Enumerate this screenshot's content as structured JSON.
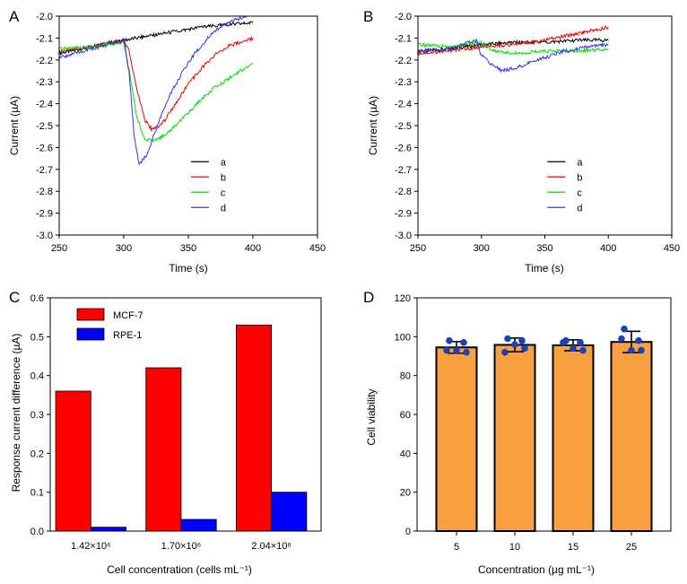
{
  "chart_data": [
    {
      "id": "A",
      "panel_label": "A",
      "type": "line",
      "xlabel": "Time (s)",
      "ylabel": "Current (µA)",
      "xlim": [
        250,
        450
      ],
      "ylim": [
        -3.0,
        -2.0
      ],
      "xticks": [
        250,
        300,
        350,
        400,
        450
      ],
      "xtick_labels": [
        "250",
        "300",
        "350",
        "400",
        "450"
      ],
      "yticks": [
        -3.0,
        -2.9,
        -2.8,
        -2.7,
        -2.6,
        -2.5,
        -2.4,
        -2.3,
        -2.2,
        -2.1,
        -2.0
      ],
      "ytick_labels": [
        "-3.0",
        "-2.9",
        "-2.8",
        "-2.7",
        "-2.6",
        "-2.5",
        "-2.4",
        "-2.3",
        "-2.2",
        "-2.1",
        "-2.0"
      ],
      "series": [
        {
          "name": "a",
          "color": "#000000",
          "x": [
            250,
            275,
            300,
            320,
            340,
            360,
            380,
            400
          ],
          "y": [
            -2.17,
            -2.14,
            -2.11,
            -2.09,
            -2.07,
            -2.05,
            -2.04,
            -2.03
          ]
        },
        {
          "name": "b",
          "color": "#ee0000",
          "x": [
            250,
            275,
            300,
            304,
            310,
            316,
            322,
            330,
            340,
            350,
            360,
            370,
            380,
            390,
            400
          ],
          "y": [
            -2.16,
            -2.14,
            -2.11,
            -2.16,
            -2.33,
            -2.47,
            -2.52,
            -2.49,
            -2.4,
            -2.31,
            -2.24,
            -2.18,
            -2.14,
            -2.12,
            -2.1
          ]
        },
        {
          "name": "c",
          "color": "#00dd00",
          "x": [
            250,
            275,
            300,
            304,
            310,
            316,
            322,
            330,
            340,
            350,
            360,
            370,
            380,
            390,
            400
          ],
          "y": [
            -2.15,
            -2.14,
            -2.12,
            -2.24,
            -2.46,
            -2.56,
            -2.57,
            -2.55,
            -2.5,
            -2.44,
            -2.38,
            -2.33,
            -2.29,
            -2.25,
            -2.22
          ]
        },
        {
          "name": "d",
          "color": "#3333ee",
          "x": [
            250,
            275,
            300,
            304,
            308,
            312,
            318,
            326,
            335,
            345,
            355,
            365,
            375,
            385,
            395,
            400
          ],
          "y": [
            -2.19,
            -2.15,
            -2.11,
            -2.25,
            -2.55,
            -2.68,
            -2.63,
            -2.5,
            -2.37,
            -2.26,
            -2.17,
            -2.1,
            -2.05,
            -2.02,
            -2.0,
            -1.99
          ]
        }
      ],
      "legend": [
        "a",
        "b",
        "c",
        "d"
      ]
    },
    {
      "id": "B",
      "panel_label": "B",
      "type": "line",
      "xlabel": "Time (s)",
      "ylabel": "Current (µA)",
      "xlim": [
        250,
        450
      ],
      "ylim": [
        -3.0,
        -2.0
      ],
      "xticks": [
        250,
        300,
        350,
        400,
        450
      ],
      "xtick_labels": [
        "250",
        "300",
        "350",
        "400",
        "450"
      ],
      "yticks": [
        -3.0,
        -2.9,
        -2.8,
        -2.7,
        -2.6,
        -2.5,
        -2.4,
        -2.3,
        -2.2,
        -2.1,
        -2.0
      ],
      "ytick_labels": [
        "-3.0",
        "-2.9",
        "-2.8",
        "-2.7",
        "-2.6",
        "-2.5",
        "-2.4",
        "-2.3",
        "-2.2",
        "-2.1",
        "-2.0"
      ],
      "series": [
        {
          "name": "a",
          "color": "#000000",
          "x": [
            250,
            275,
            300,
            325,
            350,
            375,
            400
          ],
          "y": [
            -2.16,
            -2.15,
            -2.13,
            -2.12,
            -2.12,
            -2.11,
            -2.11
          ]
        },
        {
          "name": "b",
          "color": "#ee0000",
          "x": [
            250,
            275,
            300,
            325,
            350,
            375,
            400
          ],
          "y": [
            -2.17,
            -2.16,
            -2.14,
            -2.13,
            -2.11,
            -2.08,
            -2.05
          ]
        },
        {
          "name": "c",
          "color": "#00dd00",
          "x": [
            250,
            275,
            300,
            310,
            325,
            350,
            375,
            400
          ],
          "y": [
            -2.13,
            -2.14,
            -2.12,
            -2.16,
            -2.17,
            -2.16,
            -2.16,
            -2.15
          ]
        },
        {
          "name": "d",
          "color": "#3333ee",
          "x": [
            250,
            275,
            296,
            300,
            308,
            316,
            325,
            335,
            345,
            355,
            365,
            375,
            385,
            400
          ],
          "y": [
            -2.16,
            -2.15,
            -2.11,
            -2.18,
            -2.22,
            -2.25,
            -2.24,
            -2.22,
            -2.2,
            -2.18,
            -2.16,
            -2.15,
            -2.14,
            -2.13
          ]
        }
      ],
      "legend": [
        "a",
        "b",
        "c",
        "d"
      ]
    },
    {
      "id": "C",
      "panel_label": "C",
      "type": "bar",
      "xlabel": "Cell concentration (cells mL⁻¹)",
      "ylabel": "Response current difference (µA)",
      "ylim": [
        0.0,
        0.6
      ],
      "yticks": [
        0.0,
        0.1,
        0.2,
        0.3,
        0.4,
        0.5,
        0.6
      ],
      "ytick_labels": [
        "0.0",
        "0.1",
        "0.2",
        "0.3",
        "0.4",
        "0.5",
        "0.6"
      ],
      "categories": [
        "1.42×10⁶",
        "1.70×10⁶",
        "2.04×10⁶"
      ],
      "series": [
        {
          "name": "MCF-7",
          "color": "#ff0000",
          "values": [
            0.36,
            0.42,
            0.53
          ]
        },
        {
          "name": "RPE-1",
          "color": "#0000ff",
          "values": [
            0.01,
            0.03,
            0.1
          ]
        }
      ],
      "legend": [
        "MCF-7",
        "RPE-1"
      ]
    },
    {
      "id": "D",
      "panel_label": "D",
      "type": "bar",
      "xlabel": "Concentration (µg mL⁻¹)",
      "ylabel": "Cell viability",
      "ylim": [
        0,
        120
      ],
      "yticks": [
        0,
        20,
        40,
        60,
        80,
        100,
        120
      ],
      "ytick_labels": [
        "0",
        "20",
        "40",
        "60",
        "80",
        "100",
        "120"
      ],
      "categories": [
        "5",
        "10",
        "15",
        "25"
      ],
      "bar_color": "#f9a040",
      "point_color": "#1a3fbf",
      "values": [
        94.5,
        95.8,
        95.6,
        97.3
      ],
      "errors": [
        3.0,
        3.5,
        2.8,
        5.5
      ],
      "points": [
        [
          98,
          97,
          93,
          93,
          92
        ],
        [
          99,
          98,
          92,
          96,
          94
        ],
        [
          98,
          97,
          97,
          94,
          93
        ],
        [
          104,
          98,
          99,
          93,
          93
        ]
      ]
    }
  ]
}
